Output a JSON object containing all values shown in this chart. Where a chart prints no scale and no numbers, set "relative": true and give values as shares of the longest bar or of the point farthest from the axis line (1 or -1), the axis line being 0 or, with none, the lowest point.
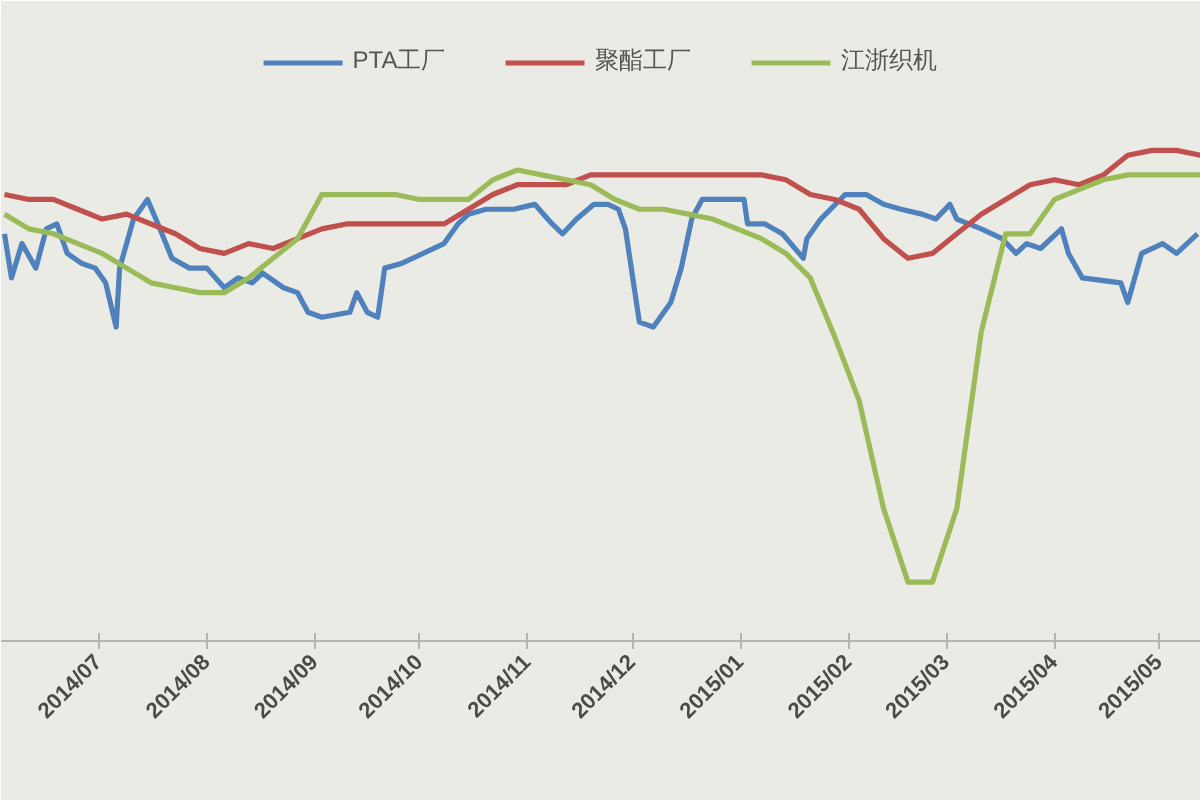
{
  "chart_data": {
    "type": "line",
    "relative": true,
    "legend": "top",
    "xlim": [
      "2014-06-03",
      "2015-05-13"
    ],
    "xticks": [
      {
        "value": "2014-07-01",
        "label": "2014/07"
      },
      {
        "value": "2014-08-01",
        "label": "2014/08"
      },
      {
        "value": "2014-09-01",
        "label": "2014/09"
      },
      {
        "value": "2014-10-01",
        "label": "2014/10"
      },
      {
        "value": "2014-11-01",
        "label": "2014/11"
      },
      {
        "value": "2014-12-01",
        "label": "2014/12"
      },
      {
        "value": "2015-01-01",
        "label": "2015/01"
      },
      {
        "value": "2015-02-01",
        "label": "2015/02"
      },
      {
        "value": "2015-03-01",
        "label": "2015/03"
      },
      {
        "value": "2015-04-01",
        "label": "2015/04"
      },
      {
        "value": "2015-05-01",
        "label": "2015/05"
      }
    ],
    "x": [
      "2014-06-04",
      "2014-06-11",
      "2014-06-18",
      "2014-06-25",
      "2014-07-02",
      "2014-07-09",
      "2014-07-16",
      "2014-07-23",
      "2014-07-30",
      "2014-08-06",
      "2014-08-13",
      "2014-08-20",
      "2014-08-27",
      "2014-09-03",
      "2014-09-10",
      "2014-09-17",
      "2014-09-24",
      "2014-10-01",
      "2014-10-08",
      "2014-10-15",
      "2014-10-22",
      "2014-10-29",
      "2014-11-05",
      "2014-11-12",
      "2014-11-19",
      "2014-11-26",
      "2014-12-03",
      "2014-12-10",
      "2014-12-17",
      "2014-12-24",
      "2014-12-31",
      "2015-01-07",
      "2015-01-14",
      "2015-01-21",
      "2015-01-28",
      "2015-02-04",
      "2015-02-11",
      "2015-02-18",
      "2015-02-25",
      "2015-03-04",
      "2015-03-11",
      "2015-03-18",
      "2015-03-25",
      "2015-04-01",
      "2015-04-08",
      "2015-04-15",
      "2015-04-22",
      "2015-04-29",
      "2015-05-06",
      "2015-05-13"
    ],
    "series": [
      {
        "name": "PTA工厂",
        "color": "#4f81bd",
        "x": [
          "2014-06-04",
          "2014-06-06",
          "2014-06-09",
          "2014-06-13",
          "2014-06-16",
          "2014-06-19",
          "2014-06-22",
          "2014-06-26",
          "2014-06-30",
          "2014-07-03",
          "2014-07-06",
          "2014-07-07",
          "2014-07-11",
          "2014-07-15",
          "2014-07-18",
          "2014-07-22",
          "2014-07-27",
          "2014-08-01",
          "2014-08-06",
          "2014-08-10",
          "2014-08-14",
          "2014-08-17",
          "2014-08-23",
          "2014-08-27",
          "2014-08-30",
          "2014-09-03",
          "2014-09-11",
          "2014-09-13",
          "2014-09-16",
          "2014-09-19",
          "2014-09-21",
          "2014-09-26",
          "2014-10-02",
          "2014-10-08",
          "2014-10-12",
          "2014-10-15",
          "2014-10-20",
          "2014-10-28",
          "2014-11-03",
          "2014-11-08",
          "2014-11-11",
          "2014-11-15",
          "2014-11-20",
          "2014-11-24",
          "2014-11-27",
          "2014-11-29",
          "2014-12-03",
          "2014-12-07",
          "2014-12-12",
          "2014-12-15",
          "2014-12-18",
          "2014-12-21",
          "2015-01-02",
          "2015-01-03",
          "2015-01-08",
          "2015-01-13",
          "2015-01-19",
          "2015-01-20",
          "2015-01-24",
          "2015-01-31",
          "2015-02-06",
          "2015-02-11",
          "2015-02-16",
          "2015-02-22",
          "2015-02-26",
          "2015-03-02",
          "2015-03-04",
          "2015-03-11",
          "2015-03-17",
          "2015-03-21",
          "2015-03-24",
          "2015-03-28",
          "2015-04-03",
          "2015-04-05",
          "2015-04-09",
          "2015-04-20",
          "2015-04-22",
          "2015-04-26",
          "2015-05-02",
          "2015-05-06",
          "2015-05-09",
          "2015-05-12"
        ],
        "values": [
          0.83,
          0.74,
          0.81,
          0.76,
          0.84,
          0.85,
          0.79,
          0.77,
          0.76,
          0.73,
          0.64,
          0.76,
          0.86,
          0.9,
          0.85,
          0.78,
          0.76,
          0.76,
          0.72,
          0.74,
          0.73,
          0.75,
          0.72,
          0.71,
          0.67,
          0.66,
          0.67,
          0.71,
          0.67,
          0.66,
          0.76,
          0.77,
          0.79,
          0.81,
          0.85,
          0.87,
          0.88,
          0.88,
          0.89,
          0.85,
          0.83,
          0.86,
          0.89,
          0.89,
          0.88,
          0.84,
          0.65,
          0.64,
          0.69,
          0.76,
          0.86,
          0.9,
          0.9,
          0.85,
          0.85,
          0.83,
          0.78,
          0.82,
          0.86,
          0.91,
          0.91,
          0.89,
          0.88,
          0.87,
          0.86,
          0.89,
          0.86,
          0.84,
          0.82,
          0.79,
          0.81,
          0.8,
          0.84,
          0.79,
          0.74,
          0.73,
          0.69,
          0.79,
          0.81,
          0.79,
          0.81,
          0.83
        ]
      },
      {
        "name": "聚酯工厂",
        "color": "#c0504d",
        "values": [
          0.91,
          0.9,
          0.9,
          0.88,
          0.86,
          0.87,
          0.85,
          0.83,
          0.8,
          0.79,
          0.81,
          0.8,
          0.82,
          0.84,
          0.85,
          0.85,
          0.85,
          0.85,
          0.85,
          0.88,
          0.91,
          0.93,
          0.93,
          0.93,
          0.95,
          0.95,
          0.95,
          0.95,
          0.95,
          0.95,
          0.95,
          0.95,
          0.94,
          0.91,
          0.9,
          0.88,
          0.82,
          0.78,
          0.79,
          0.83,
          0.87,
          0.9,
          0.93,
          0.94,
          0.93,
          0.95,
          0.99,
          1.0,
          1.0,
          0.99
        ]
      },
      {
        "name": "江浙织机",
        "color": "#9bbb59",
        "values": [
          0.87,
          0.84,
          0.83,
          0.81,
          0.79,
          0.76,
          0.73,
          0.72,
          0.71,
          0.71,
          0.74,
          0.78,
          0.82,
          0.91,
          0.91,
          0.91,
          0.91,
          0.9,
          0.9,
          0.9,
          0.94,
          0.96,
          0.95,
          0.94,
          0.93,
          0.9,
          0.88,
          0.88,
          0.87,
          0.86,
          0.84,
          0.82,
          0.79,
          0.74,
          0.62,
          0.49,
          0.27,
          0.12,
          0.12,
          0.27,
          0.63,
          0.83,
          0.83,
          0.9,
          0.92,
          0.94,
          0.95,
          0.95,
          0.95,
          0.95
        ]
      }
    ]
  }
}
